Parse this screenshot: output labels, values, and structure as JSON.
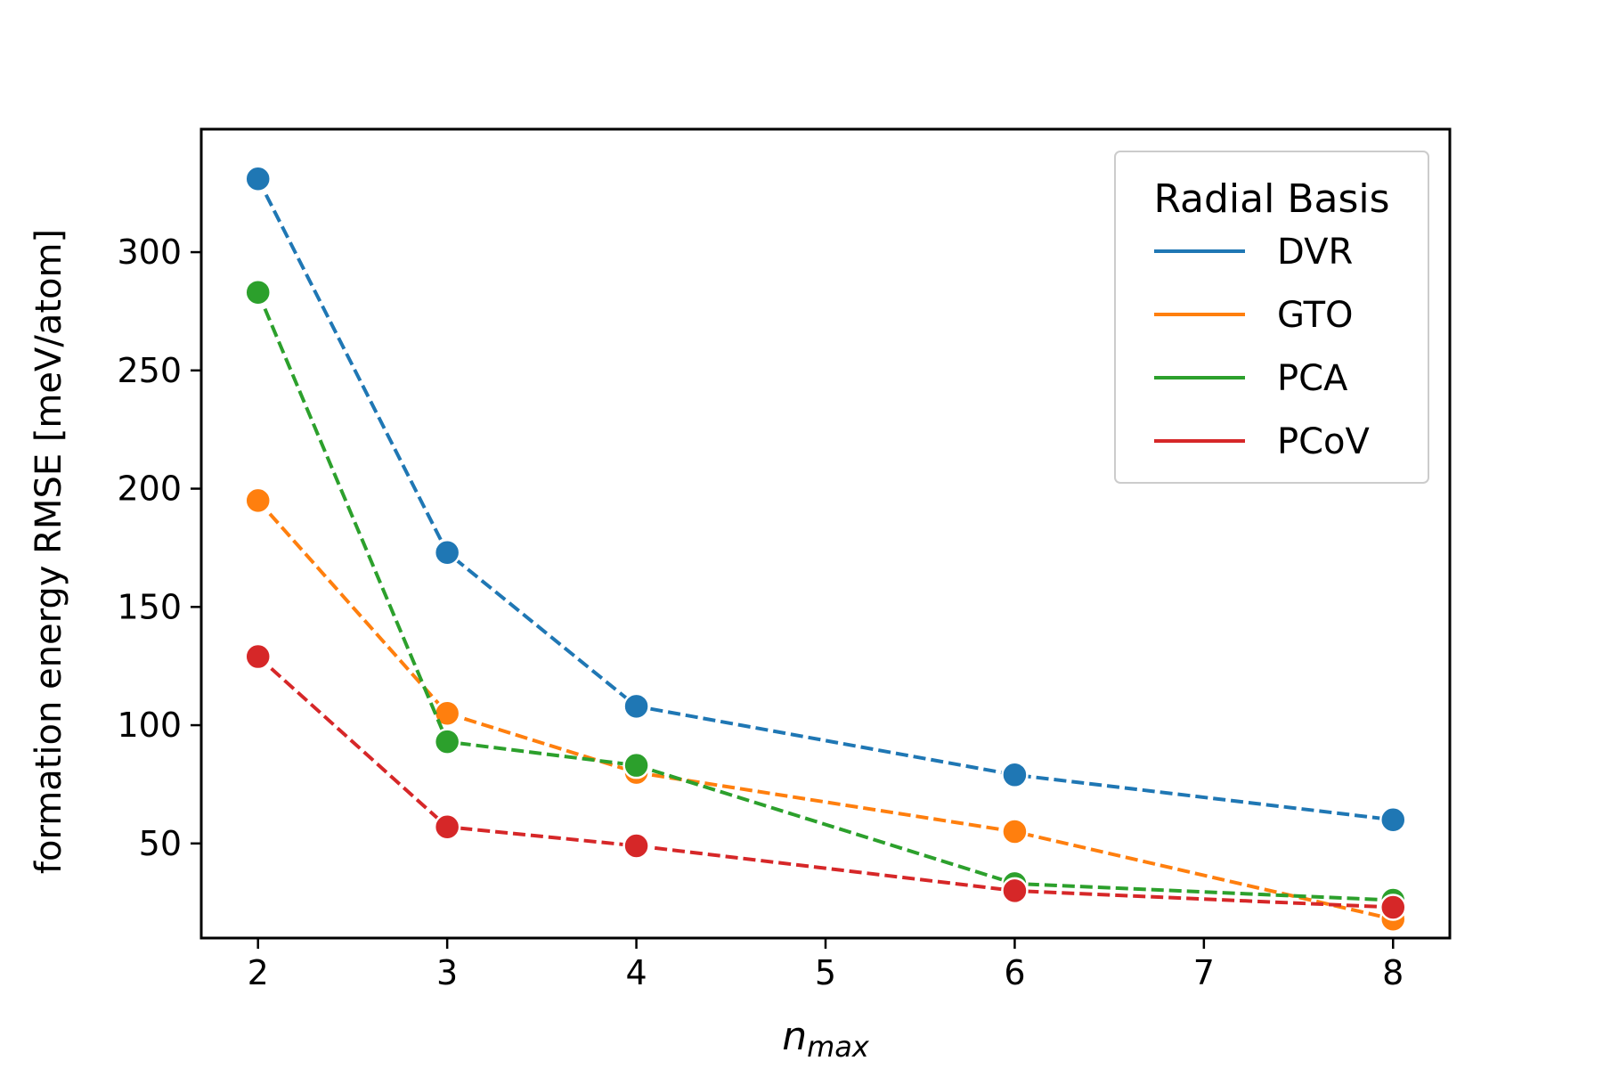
{
  "chart_data": {
    "type": "line",
    "xlabel_main": "n",
    "xlabel_sub": "max",
    "ylabel": "formation energy RMSE [meV/atom]",
    "xlim": [
      1.7,
      8.3
    ],
    "ylim": [
      10,
      352
    ],
    "xticks": [
      2,
      3,
      4,
      5,
      6,
      7,
      8
    ],
    "yticks": [
      50,
      100,
      150,
      200,
      250,
      300
    ],
    "grid": false,
    "legend": {
      "title": "Radial Basis",
      "placement": "top-right"
    },
    "x": [
      2,
      3,
      4,
      6,
      8
    ],
    "series": [
      {
        "name": "DVR",
        "color": "#1f77b4",
        "values": [
          331,
          173,
          108,
          79,
          60
        ]
      },
      {
        "name": "GTO",
        "color": "#ff7f0e",
        "values": [
          195,
          105,
          80,
          55,
          18
        ]
      },
      {
        "name": "PCA",
        "color": "#2ca02c",
        "values": [
          283,
          93,
          83,
          33,
          26
        ]
      },
      {
        "name": "PCoV",
        "color": "#d62728",
        "values": [
          129,
          57,
          49,
          30,
          23
        ]
      }
    ]
  }
}
